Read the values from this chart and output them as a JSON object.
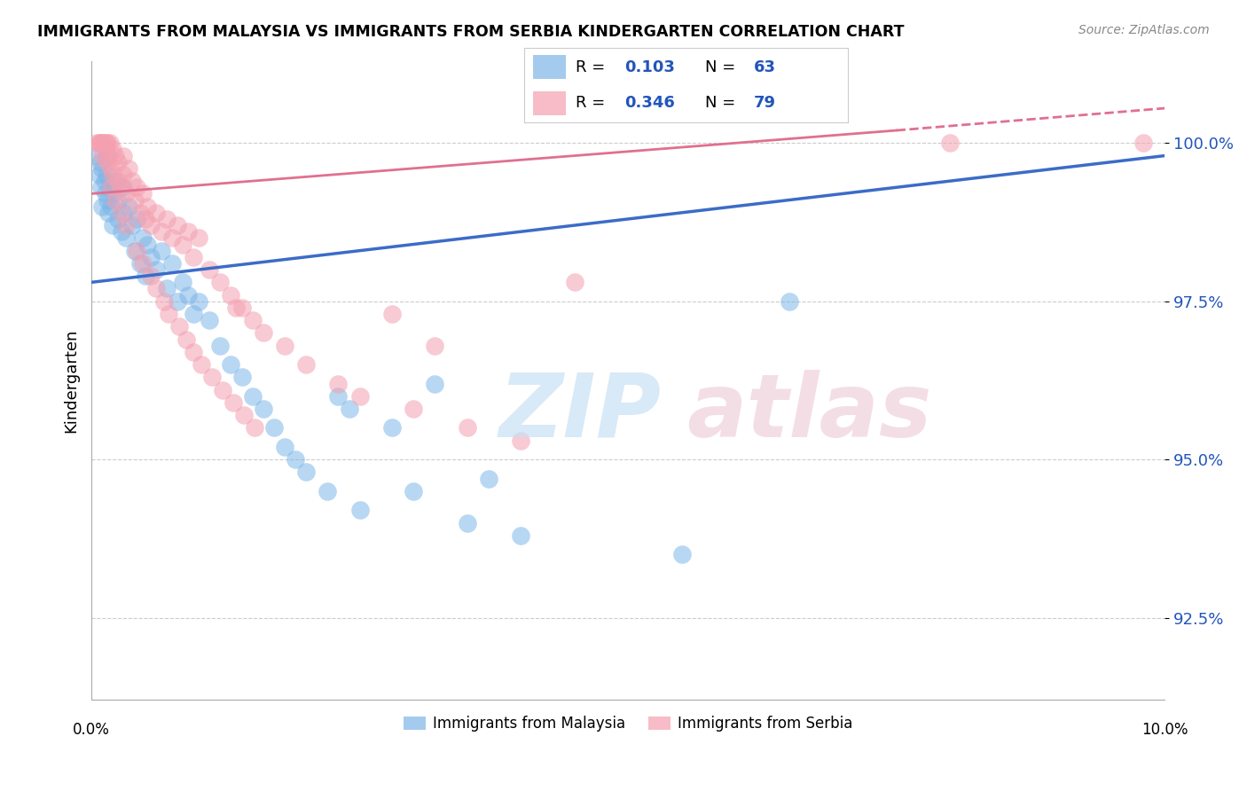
{
  "title": "IMMIGRANTS FROM MALAYSIA VS IMMIGRANTS FROM SERBIA KINDERGARTEN CORRELATION CHART",
  "source": "Source: ZipAtlas.com",
  "ylabel": "Kindergarten",
  "yticks": [
    92.5,
    95.0,
    97.5,
    100.0
  ],
  "ytick_labels": [
    "92.5%",
    "95.0%",
    "97.5%",
    "100.0%"
  ],
  "xmin": 0.0,
  "xmax": 10.0,
  "ymin": 91.2,
  "ymax": 101.3,
  "malaysia_R": 0.103,
  "malaysia_N": 63,
  "serbia_R": 0.346,
  "serbia_N": 79,
  "malaysia_color": "#7EB6E8",
  "serbia_color": "#F4A0B0",
  "malaysia_line_color": "#3B6CC7",
  "serbia_line_color": "#E07090",
  "malaysia_line_x0": 0.0,
  "malaysia_line_y0": 97.8,
  "malaysia_line_x1": 10.0,
  "malaysia_line_y1": 99.8,
  "serbia_line_x0": 0.0,
  "serbia_line_y0": 99.2,
  "serbia_line_x1": 7.5,
  "serbia_line_y1": 100.2,
  "serbia_dash_x0": 7.5,
  "serbia_dash_y0": 100.2,
  "serbia_dash_x1": 10.0,
  "serbia_dash_y1": 100.55,
  "malaysia_x": [
    0.05,
    0.07,
    0.08,
    0.09,
    0.1,
    0.1,
    0.12,
    0.13,
    0.14,
    0.15,
    0.15,
    0.16,
    0.17,
    0.18,
    0.2,
    0.2,
    0.22,
    0.25,
    0.25,
    0.28,
    0.3,
    0.3,
    0.32,
    0.35,
    0.38,
    0.4,
    0.42,
    0.45,
    0.48,
    0.5,
    0.52,
    0.55,
    0.6,
    0.65,
    0.7,
    0.75,
    0.8,
    0.85,
    0.9,
    0.95,
    1.0,
    1.1,
    1.2,
    1.3,
    1.4,
    1.5,
    1.6,
    1.7,
    1.8,
    1.9,
    2.0,
    2.2,
    2.5,
    2.8,
    3.0,
    3.5,
    4.0,
    5.5,
    6.5,
    2.3,
    2.4,
    3.2,
    3.7
  ],
  "malaysia_y": [
    99.8,
    99.5,
    99.7,
    99.3,
    99.6,
    99.0,
    99.4,
    99.2,
    99.5,
    99.1,
    99.8,
    98.9,
    99.3,
    99.0,
    99.2,
    98.7,
    99.4,
    98.8,
    99.1,
    98.6,
    98.9,
    99.3,
    98.5,
    99.0,
    98.7,
    98.3,
    98.8,
    98.1,
    98.5,
    97.9,
    98.4,
    98.2,
    98.0,
    98.3,
    97.7,
    98.1,
    97.5,
    97.8,
    97.6,
    97.3,
    97.5,
    97.2,
    96.8,
    96.5,
    96.3,
    96.0,
    95.8,
    95.5,
    95.2,
    95.0,
    94.8,
    94.5,
    94.2,
    95.5,
    94.5,
    94.0,
    93.8,
    93.5,
    97.5,
    96.0,
    95.8,
    96.2,
    94.7
  ],
  "serbia_x": [
    0.05,
    0.07,
    0.08,
    0.09,
    0.1,
    0.1,
    0.12,
    0.13,
    0.14,
    0.15,
    0.15,
    0.16,
    0.17,
    0.18,
    0.2,
    0.2,
    0.22,
    0.25,
    0.25,
    0.28,
    0.3,
    0.3,
    0.32,
    0.35,
    0.38,
    0.4,
    0.42,
    0.45,
    0.48,
    0.5,
    0.52,
    0.55,
    0.6,
    0.65,
    0.7,
    0.75,
    0.8,
    0.85,
    0.9,
    0.95,
    1.0,
    1.1,
    1.2,
    1.3,
    1.4,
    1.5,
    1.6,
    1.8,
    2.0,
    2.3,
    2.5,
    3.0,
    3.5,
    4.0,
    0.18,
    0.22,
    0.28,
    0.32,
    0.42,
    0.48,
    0.55,
    0.6,
    0.68,
    0.72,
    0.82,
    0.88,
    0.95,
    1.02,
    1.12,
    1.22,
    1.32,
    1.42,
    1.52,
    8.0,
    9.8,
    1.35,
    2.8,
    3.2,
    4.5
  ],
  "serbia_y": [
    100.0,
    100.0,
    100.0,
    100.0,
    100.0,
    99.8,
    100.0,
    99.9,
    100.0,
    99.7,
    100.0,
    99.8,
    100.0,
    99.6,
    99.9,
    99.5,
    99.8,
    99.4,
    99.7,
    99.3,
    99.5,
    99.8,
    99.2,
    99.6,
    99.4,
    99.1,
    99.3,
    98.9,
    99.2,
    98.8,
    99.0,
    98.7,
    98.9,
    98.6,
    98.8,
    98.5,
    98.7,
    98.4,
    98.6,
    98.2,
    98.5,
    98.0,
    97.8,
    97.6,
    97.4,
    97.2,
    97.0,
    96.8,
    96.5,
    96.2,
    96.0,
    95.8,
    95.5,
    95.3,
    99.3,
    99.1,
    98.9,
    98.7,
    98.3,
    98.1,
    97.9,
    97.7,
    97.5,
    97.3,
    97.1,
    96.9,
    96.7,
    96.5,
    96.3,
    96.1,
    95.9,
    95.7,
    95.5,
    100.0,
    100.0,
    97.4,
    97.3,
    96.8,
    97.8
  ]
}
